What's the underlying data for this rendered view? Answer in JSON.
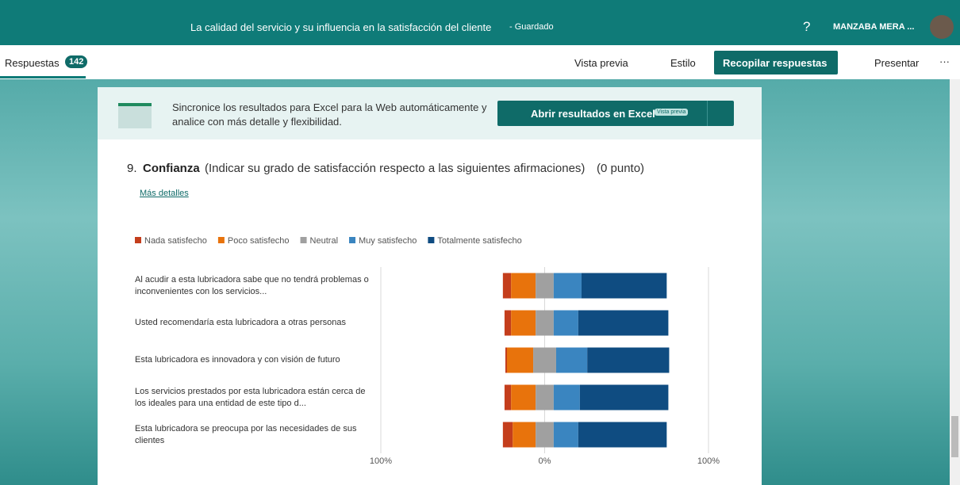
{
  "header": {
    "title": "La calidad del servicio y su influencia en la satisfacción del cliente",
    "saved": "- Guardado",
    "help": "?",
    "user": "MANZABA MERA ..."
  },
  "toolbar": {
    "tab": "Respuestas",
    "count": "142",
    "preview": "Vista previa",
    "style": "Estilo",
    "collect": "Recopilar respuestas",
    "present": "Presentar",
    "more": "···"
  },
  "banner": {
    "text": "Sincronice los resultados para Excel para la Web automáticamente y analice con más detalle y flexibilidad.",
    "button": "Abrir resultados en Excel",
    "badge": "Vista previa"
  },
  "question": {
    "number": "9.",
    "title": "Confianza",
    "description": "(Indicar su grado de satisfacción respecto a las siguientes afirmaciones)",
    "points": "(0 punto)",
    "details": "Más detalles"
  },
  "chart_data": {
    "type": "diverging-bar",
    "categories": [
      "Al acudir a esta lubricadora sabe que no tendrá problemas o inconvenientes con los servicios...",
      "Usted recomendaría esta lubricadora a otras personas",
      "Esta lubricadora es innovadora y con visión de futuro",
      "Los servicios prestados por esta lubricadora están cerca de los ideales para una entidad de este tipo d...",
      "Esta lubricadora se preocupa por las necesidades de sus clientes"
    ],
    "series": [
      {
        "name": "Nada satisfecho",
        "color": "#c43e1c",
        "values": [
          5,
          4,
          1,
          4,
          6
        ]
      },
      {
        "name": "Poco satisfecho",
        "color": "#e8730c",
        "values": [
          15,
          15,
          16,
          15,
          14
        ]
      },
      {
        "name": "Neutral",
        "color": "#a0a0a0",
        "values": [
          11,
          11,
          14,
          11,
          11
        ]
      },
      {
        "name": "Muy satisfecho",
        "color": "#3a85c0",
        "values": [
          17,
          15,
          19,
          16,
          15
        ]
      },
      {
        "name": "Totalmente satisfecho",
        "color": "#0f4c81",
        "values": [
          52,
          55,
          50,
          54,
          54
        ]
      }
    ],
    "xlim": [
      -100,
      100
    ],
    "xticks": [
      {
        "value": -100,
        "label": "100%"
      },
      {
        "value": 0,
        "label": "0%"
      },
      {
        "value": 100,
        "label": "100%"
      }
    ],
    "legend": "top"
  }
}
